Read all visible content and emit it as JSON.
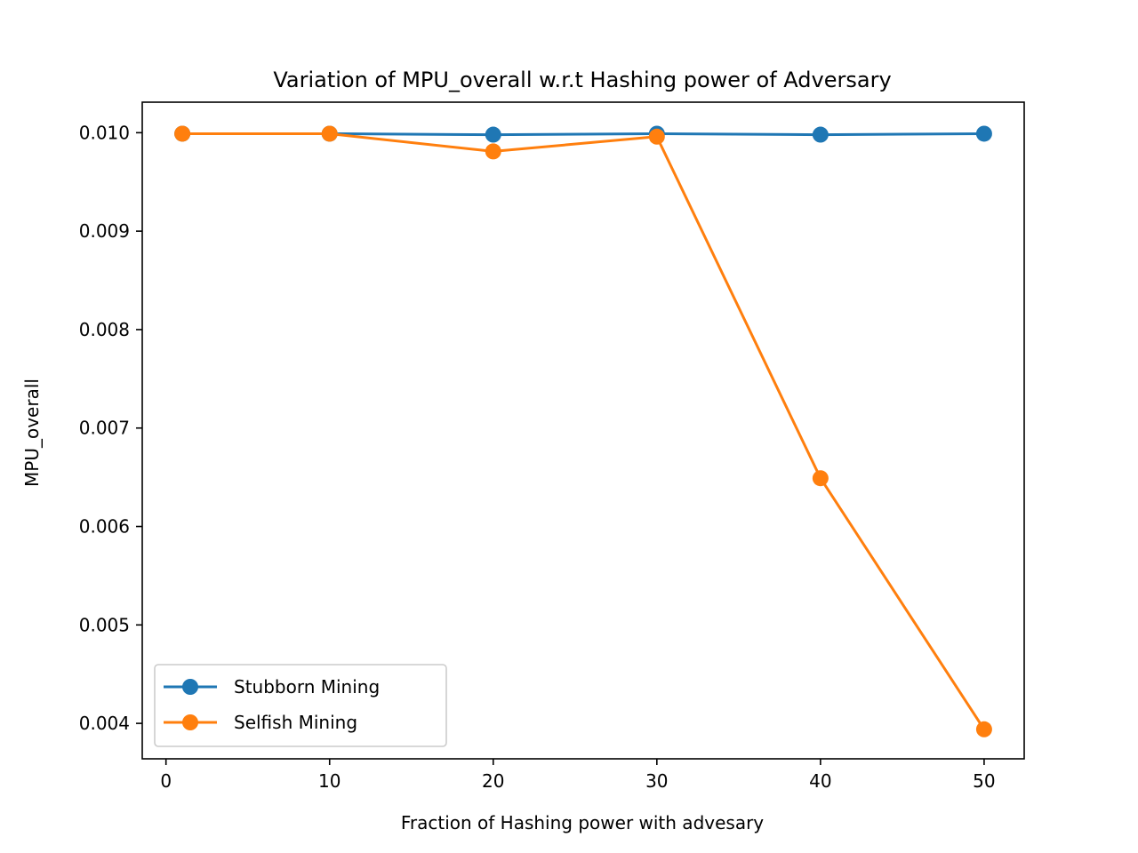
{
  "chart_data": {
    "type": "line",
    "title": "Variation of MPU_overall w.r.t Hashing power of Adversary",
    "xlabel": "Fraction of Hashing power with advesary",
    "ylabel": "MPU_overall",
    "xlim": [
      -1.45,
      52.45
    ],
    "ylim": [
      0.00364,
      0.01031
    ],
    "xticks": [
      0,
      10,
      20,
      30,
      40,
      50
    ],
    "xtick_labels": [
      "0",
      "10",
      "20",
      "30",
      "40",
      "50"
    ],
    "yticks": [
      0.004,
      0.005,
      0.006,
      0.007,
      0.008,
      0.009,
      0.01
    ],
    "ytick_labels": [
      "0.004",
      "0.005",
      "0.006",
      "0.007",
      "0.008",
      "0.009",
      "0.010"
    ],
    "grid": false,
    "legend_position": "lower-left",
    "series": [
      {
        "name": "Stubborn Mining",
        "color": "#1f77b4",
        "marker": "circle",
        "x": [
          1,
          10,
          20,
          30,
          40,
          50
        ],
        "y": [
          0.00999,
          0.00999,
          0.00998,
          0.00999,
          0.00998,
          0.00999
        ]
      },
      {
        "name": "Selfish Mining",
        "color": "#ff7f0e",
        "marker": "circle",
        "x": [
          1,
          10,
          20,
          30,
          40,
          50
        ],
        "y": [
          0.00999,
          0.00999,
          0.00981,
          0.00996,
          0.00649,
          0.00394
        ]
      }
    ]
  }
}
